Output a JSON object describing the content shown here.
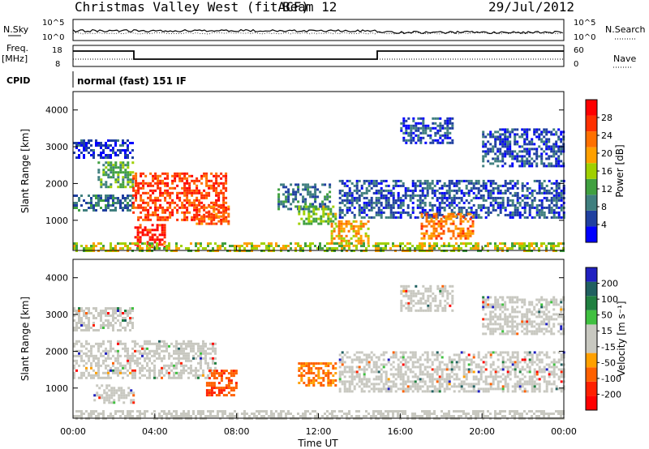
{
  "header": {
    "title": "Christmas Valley West (fitACF)",
    "beam": "Beam 12",
    "date": "29/Jul/2012"
  },
  "top_panel": {
    "nsky_label": "N.Sky",
    "nsearch_label": "N.Search",
    "left_ticks": [
      "10^5",
      "10^0"
    ],
    "right_ticks": [
      "10^5",
      "10^0"
    ],
    "freq_label": "Freq.",
    "freq_unit": "[MHz]",
    "freq_ticks": [
      "18",
      "8"
    ],
    "nave_label": "Nave",
    "nave_ticks": [
      "60",
      "0"
    ],
    "cpid_label": "CPID",
    "cpid_text": "normal (fast) 151 IF"
  },
  "colors": {
    "power_scale": [
      "#0000ff",
      "#2040a0",
      "#407f7f",
      "#40a040",
      "#a0d000",
      "#ffa000",
      "#ff7000",
      "#ff3000",
      "#ff0000"
    ],
    "velocity_scale": [
      "#2020c0",
      "#206060",
      "#208040",
      "#40c040",
      "#c8c8c0",
      "#c8c8c0",
      "#ffa000",
      "#ff6000",
      "#ff2000",
      "#ff0000"
    ],
    "ground_scatter": "#c8c8c0"
  },
  "chart_data": [
    {
      "type": "heatmap",
      "name": "power-panel",
      "xlabel": "",
      "ylabel": "Slant Range [km]",
      "xlim": [
        0,
        24
      ],
      "ylim": [
        180,
        4500
      ],
      "y_ticks": [
        "1000",
        "2000",
        "3000",
        "4000"
      ],
      "colorbar_label": "Power [dB]",
      "colorbar_ticks": [
        "4",
        "8",
        "12",
        "16",
        "20",
        "24",
        "28"
      ],
      "regions": [
        {
          "t0": 0.0,
          "t1": 2.9,
          "r0": 2700,
          "r1": 3200,
          "level": 4
        },
        {
          "t0": 1.2,
          "t1": 2.9,
          "r0": 1900,
          "r1": 2600,
          "level": 12
        },
        {
          "t0": 0.0,
          "t1": 2.9,
          "r0": 1300,
          "r1": 1700,
          "level": 8
        },
        {
          "t0": 2.9,
          "t1": 7.5,
          "r0": 1000,
          "r1": 2300,
          "level": 26
        },
        {
          "t0": 3.0,
          "t1": 4.5,
          "r0": 300,
          "r1": 900,
          "level": 28
        },
        {
          "t0": 6.0,
          "t1": 7.6,
          "r0": 900,
          "r1": 1400,
          "level": 24
        },
        {
          "t0": 10.0,
          "t1": 12.5,
          "r0": 1300,
          "r1": 2000,
          "level": 8
        },
        {
          "t0": 11.0,
          "t1": 12.8,
          "r0": 900,
          "r1": 1400,
          "level": 14
        },
        {
          "t0": 12.6,
          "t1": 14.5,
          "r0": 300,
          "r1": 1000,
          "level": 20
        },
        {
          "t0": 13.0,
          "t1": 24.0,
          "r0": 1100,
          "r1": 2100,
          "level": 6
        },
        {
          "t0": 17.0,
          "t1": 19.5,
          "r0": 500,
          "r1": 1200,
          "level": 22
        },
        {
          "t0": 16.0,
          "t1": 18.5,
          "r0": 3100,
          "r1": 3800,
          "level": 6
        },
        {
          "t0": 20.0,
          "t1": 24.0,
          "r0": 2500,
          "r1": 3500,
          "level": 6
        },
        {
          "t0": 0.0,
          "t1": 24.0,
          "r0": 180,
          "r1": 400,
          "level": 16
        }
      ]
    },
    {
      "type": "heatmap",
      "name": "velocity-panel",
      "xlabel": "Time UT",
      "ylabel": "Slant Range [km]",
      "xlim": [
        0,
        24
      ],
      "ylim": [
        180,
        4500
      ],
      "x_ticks": [
        "00:00",
        "04:00",
        "08:00",
        "12:00",
        "16:00",
        "20:00",
        "00:00"
      ],
      "y_ticks": [
        "1000",
        "2000",
        "3000",
        "4000"
      ],
      "colorbar_label": "Velocity [m s⁻¹]",
      "colorbar_ticks": [
        "200",
        "100",
        "50",
        "15",
        "-15",
        "-50",
        "-100",
        "-200"
      ],
      "regions": [
        {
          "t0": 0.0,
          "t1": 2.9,
          "r0": 2600,
          "r1": 3200,
          "vel": 0
        },
        {
          "t0": 0.0,
          "t1": 7.0,
          "r0": 1300,
          "r1": 2300,
          "vel": 0
        },
        {
          "t0": 1.0,
          "t1": 3.0,
          "r0": 600,
          "r1": 1100,
          "vel": 0
        },
        {
          "t0": 6.5,
          "t1": 8.0,
          "r0": 800,
          "r1": 1500,
          "vel": -90
        },
        {
          "t0": 11.0,
          "t1": 12.8,
          "r0": 1100,
          "r1": 1700,
          "vel": -60
        },
        {
          "t0": 13.0,
          "t1": 24.0,
          "r0": 900,
          "r1": 2000,
          "vel": 0
        },
        {
          "t0": 16.0,
          "t1": 18.5,
          "r0": 3100,
          "r1": 3800,
          "vel": 0
        },
        {
          "t0": 20.0,
          "t1": 24.0,
          "r0": 2500,
          "r1": 3500,
          "vel": 0
        },
        {
          "t0": 0.0,
          "t1": 24.0,
          "r0": 180,
          "r1": 400,
          "vel": 20
        }
      ]
    }
  ]
}
